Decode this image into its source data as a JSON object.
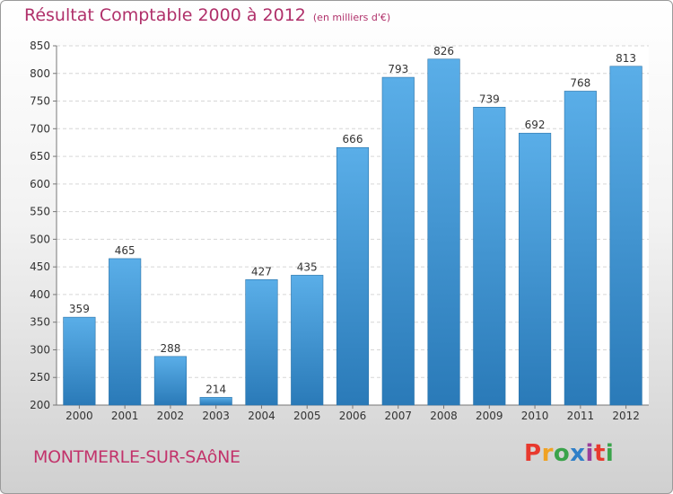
{
  "header": {
    "title": "Résultat Comptable 2000 à 2012",
    "subtitle": "(en milliers d'€)"
  },
  "footer": {
    "city": "MONTMERLE-SUR-SAôNE"
  },
  "logo": {
    "text": "Proxiti",
    "colors": [
      "#e8392e",
      "#f0a223",
      "#3aa34a",
      "#2f7fc8",
      "#9b3d9a",
      "#e8392e",
      "#3aa34a"
    ]
  },
  "colors": {
    "bar_light": "#5aaee8",
    "bar_dark": "#2a7ab8",
    "title": "#b0306a"
  },
  "chart_data": {
    "type": "bar",
    "title": "Résultat Comptable 2000 à 2012",
    "categories": [
      "2000",
      "2001",
      "2002",
      "2003",
      "2004",
      "2005",
      "2006",
      "2007",
      "2008",
      "2009",
      "2010",
      "2011",
      "2012"
    ],
    "values": [
      359,
      465,
      288,
      214,
      427,
      435,
      666,
      793,
      826,
      739,
      692,
      768,
      813
    ],
    "ylim": [
      200,
      850
    ],
    "yticks": [
      200,
      250,
      300,
      350,
      400,
      450,
      500,
      550,
      600,
      650,
      700,
      750,
      800,
      850
    ],
    "grid": true,
    "data_labels": true
  }
}
